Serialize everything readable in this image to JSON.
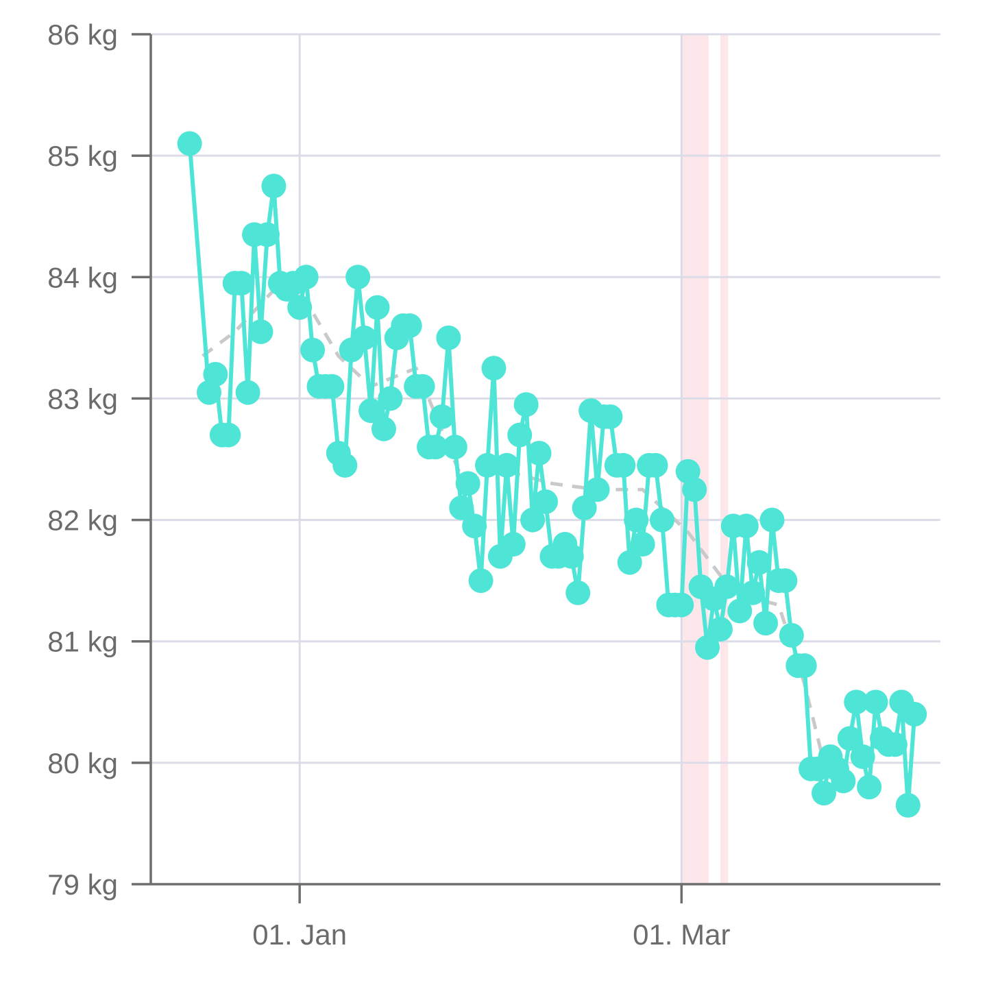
{
  "chart_data": {
    "type": "line",
    "title": "",
    "xlabel": "",
    "ylabel": "",
    "y_unit": "kg",
    "ylim": [
      79,
      86
    ],
    "y_ticks": [
      {
        "value": 79,
        "label": "79 kg"
      },
      {
        "value": 80,
        "label": "80 kg"
      },
      {
        "value": 81,
        "label": "81 kg"
      },
      {
        "value": 82,
        "label": "82 kg"
      },
      {
        "value": 83,
        "label": "83 kg"
      },
      {
        "value": 84,
        "label": "84 kg"
      },
      {
        "value": 85,
        "label": "85 kg"
      },
      {
        "value": 86,
        "label": "86 kg"
      }
    ],
    "xlim": [
      "2024-12-09",
      "2024-05-16"
    ],
    "x_ticks": [
      {
        "value": "2025-01-01",
        "label": "01. Jan"
      },
      {
        "value": "2025-03-01",
        "label": "01. Mar"
      }
    ],
    "grid": true,
    "highlight_bands": [
      {
        "start": "2025-03-01",
        "end": "2025-03-05",
        "color": "#fde7ea"
      },
      {
        "start": "2025-03-07",
        "end": "2025-03-08",
        "color": "#fde7ea"
      }
    ],
    "series": [
      {
        "role": "weight",
        "color": "#4fe5d6",
        "points": [
          [
            "2024-12-15",
            85.1
          ],
          [
            "2024-12-18",
            83.05
          ],
          [
            "2024-12-19",
            83.2
          ],
          [
            "2024-12-20",
            82.7
          ],
          [
            "2024-12-21",
            82.7
          ],
          [
            "2024-12-22",
            83.95
          ],
          [
            "2024-12-23",
            83.95
          ],
          [
            "2024-12-24",
            83.05
          ],
          [
            "2024-12-25",
            84.35
          ],
          [
            "2024-12-26",
            83.55
          ],
          [
            "2024-12-27",
            84.35
          ],
          [
            "2024-12-28",
            84.75
          ],
          [
            "2024-12-29",
            83.95
          ],
          [
            "2024-12-30",
            83.9
          ],
          [
            "2024-12-31",
            83.95
          ],
          [
            "2025-01-01",
            83.75
          ],
          [
            "2025-01-02",
            84.0
          ],
          [
            "2025-01-03",
            83.4
          ],
          [
            "2025-01-04",
            83.1
          ],
          [
            "2025-01-05",
            83.1
          ],
          [
            "2025-01-06",
            83.1
          ],
          [
            "2025-01-07",
            82.55
          ],
          [
            "2025-01-08",
            82.45
          ],
          [
            "2025-01-09",
            83.4
          ],
          [
            "2025-01-10",
            84.0
          ],
          [
            "2025-01-11",
            83.5
          ],
          [
            "2025-01-12",
            82.9
          ],
          [
            "2025-01-13",
            83.75
          ],
          [
            "2025-01-14",
            82.75
          ],
          [
            "2025-01-15",
            83.0
          ],
          [
            "2025-01-16",
            83.5
          ],
          [
            "2025-01-17",
            83.6
          ],
          [
            "2025-01-18",
            83.6
          ],
          [
            "2025-01-19",
            83.1
          ],
          [
            "2025-01-20",
            83.1
          ],
          [
            "2025-01-21",
            82.6
          ],
          [
            "2025-01-22",
            82.6
          ],
          [
            "2025-01-23",
            82.85
          ],
          [
            "2025-01-24",
            83.5
          ],
          [
            "2025-01-25",
            82.6
          ],
          [
            "2025-01-26",
            82.1
          ],
          [
            "2025-01-27",
            82.3
          ],
          [
            "2025-01-28",
            81.95
          ],
          [
            "2025-01-29",
            81.5
          ],
          [
            "2025-01-30",
            82.45
          ],
          [
            "2025-01-31",
            83.25
          ],
          [
            "2025-02-01",
            81.7
          ],
          [
            "2025-02-02",
            82.45
          ],
          [
            "2025-02-03",
            81.8
          ],
          [
            "2025-02-04",
            82.7
          ],
          [
            "2025-02-05",
            82.95
          ],
          [
            "2025-02-06",
            82.0
          ],
          [
            "2025-02-07",
            82.55
          ],
          [
            "2025-02-08",
            82.15
          ],
          [
            "2025-02-09",
            81.7
          ],
          [
            "2025-02-10",
            81.7
          ],
          [
            "2025-02-11",
            81.8
          ],
          [
            "2025-02-12",
            81.7
          ],
          [
            "2025-02-13",
            81.4
          ],
          [
            "2025-02-14",
            82.1
          ],
          [
            "2025-02-15",
            82.9
          ],
          [
            "2025-02-16",
            82.25
          ],
          [
            "2025-02-17",
            82.85
          ],
          [
            "2025-02-18",
            82.85
          ],
          [
            "2025-02-19",
            82.45
          ],
          [
            "2025-02-20",
            82.45
          ],
          [
            "2025-02-21",
            81.65
          ],
          [
            "2025-02-22",
            82.0
          ],
          [
            "2025-02-23",
            81.8
          ],
          [
            "2025-02-24",
            82.45
          ],
          [
            "2025-02-25",
            82.45
          ],
          [
            "2025-02-26",
            82.0
          ],
          [
            "2025-02-27",
            81.3
          ],
          [
            "2025-02-28",
            81.3
          ],
          [
            "2025-03-01",
            81.3
          ],
          [
            "2025-03-02",
            82.4
          ],
          [
            "2025-03-03",
            82.25
          ],
          [
            "2025-03-04",
            81.45
          ],
          [
            "2025-03-05",
            80.95
          ],
          [
            "2025-03-06",
            81.35
          ],
          [
            "2025-03-07",
            81.1
          ],
          [
            "2025-03-08",
            81.45
          ],
          [
            "2025-03-09",
            81.95
          ],
          [
            "2025-03-10",
            81.25
          ],
          [
            "2025-03-11",
            81.95
          ],
          [
            "2025-03-12",
            81.4
          ],
          [
            "2025-03-13",
            81.65
          ],
          [
            "2025-03-14",
            81.15
          ],
          [
            "2025-03-15",
            82.0
          ],
          [
            "2025-03-16",
            81.5
          ],
          [
            "2025-03-17",
            81.5
          ],
          [
            "2025-03-18",
            81.05
          ],
          [
            "2025-03-19",
            80.8
          ],
          [
            "2025-03-20",
            80.8
          ],
          [
            "2025-03-21",
            79.95
          ],
          [
            "2025-03-22",
            79.95
          ],
          [
            "2025-03-23",
            79.75
          ],
          [
            "2025-03-24",
            80.05
          ],
          [
            "2025-03-25",
            79.95
          ],
          [
            "2025-03-26",
            79.85
          ],
          [
            "2025-03-27",
            80.2
          ],
          [
            "2025-03-28",
            80.5
          ],
          [
            "2025-03-29",
            80.05
          ],
          [
            "2025-03-30",
            79.8
          ],
          [
            "2025-03-31",
            80.5
          ],
          [
            "2025-04-01",
            80.2
          ],
          [
            "2025-04-02",
            80.15
          ],
          [
            "2025-04-03",
            80.15
          ],
          [
            "2025-04-04",
            80.5
          ],
          [
            "2025-04-05",
            79.65
          ],
          [
            "2025-04-06",
            80.4
          ]
        ]
      },
      {
        "role": "trend",
        "color": "#c9c9c9",
        "style": "dashed",
        "points": [
          [
            "2024-12-17",
            83.35
          ],
          [
            "2024-12-22",
            83.55
          ],
          [
            "2024-12-29",
            83.95
          ],
          [
            "2025-01-02",
            83.8
          ],
          [
            "2025-01-07",
            83.35
          ],
          [
            "2025-01-12",
            83.1
          ],
          [
            "2025-01-19",
            83.25
          ],
          [
            "2025-01-26",
            82.35
          ],
          [
            "2025-02-02",
            82.4
          ],
          [
            "2025-02-09",
            82.3
          ],
          [
            "2025-02-16",
            82.25
          ],
          [
            "2025-02-23",
            82.25
          ],
          [
            "2025-03-02",
            81.9
          ],
          [
            "2025-03-09",
            81.4
          ],
          [
            "2025-03-16",
            81.3
          ],
          [
            "2025-03-20",
            80.65
          ],
          [
            "2025-03-23",
            80.0
          ]
        ]
      }
    ]
  }
}
